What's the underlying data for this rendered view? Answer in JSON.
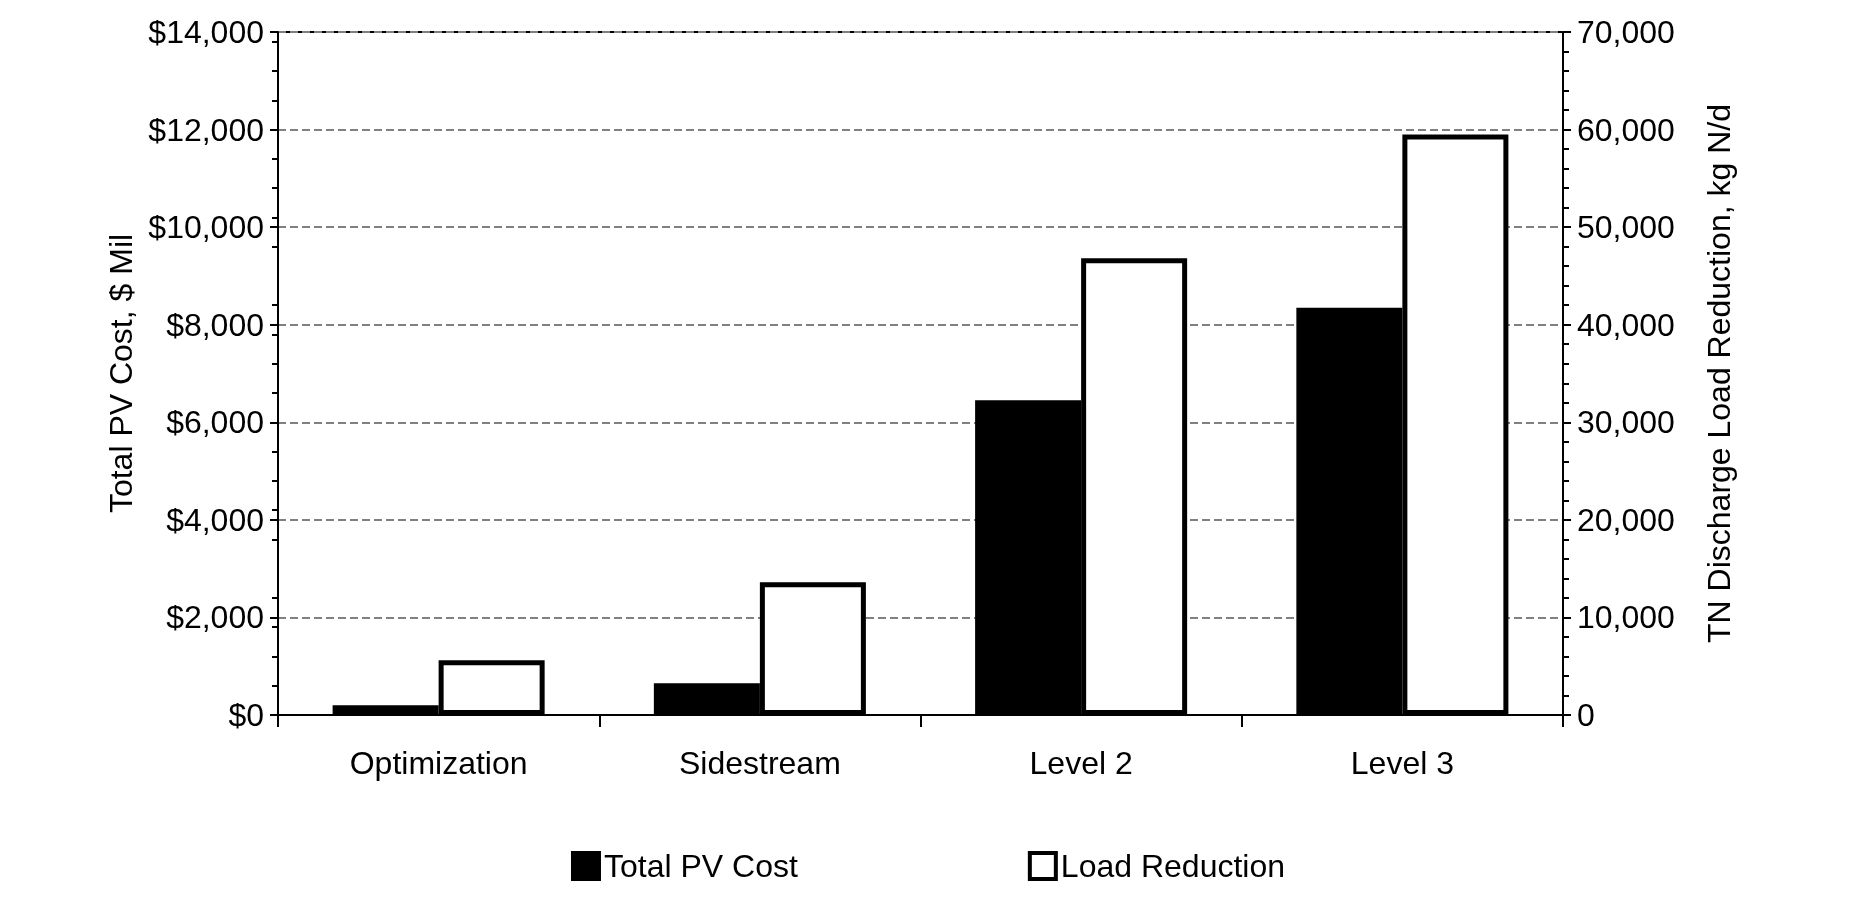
{
  "chart_data": {
    "type": "bar",
    "categories": [
      "Optimization",
      "Sidestream",
      "Level 2",
      "Level 3"
    ],
    "series": [
      {
        "name": "Total PV Cost",
        "color": "#000000",
        "values": [
          200,
          650,
          6450,
          8350
        ]
      },
      {
        "name": "Load Reduction",
        "color": "#ffffff",
        "axis": "y2",
        "values": [
          5600,
          13600,
          46800,
          59500
        ]
      }
    ],
    "ylabel": "Total PV Cost, $ Mil",
    "y2label": "TN Discharge Load Reduction, kg N/d",
    "ylim": [
      0,
      14000
    ],
    "yticks": [
      {
        "value": 0,
        "label": "$0"
      },
      {
        "value": 2000,
        "label": "$2,000"
      },
      {
        "value": 4000,
        "label": "$4,000"
      },
      {
        "value": 6000,
        "label": "$6,000"
      },
      {
        "value": 8000,
        "label": "$8,000"
      },
      {
        "value": 10000,
        "label": "$10,000"
      },
      {
        "value": 12000,
        "label": "$12,000"
      },
      {
        "value": 14000,
        "label": "$14,000"
      }
    ],
    "y2lim": [
      0,
      70000
    ],
    "y2ticks": [
      0,
      {
        "value": 10000,
        "label": "10,000"
      },
      {
        "value": 20000,
        "label": "20,000"
      },
      {
        "value": 30000,
        "label": "30,000"
      },
      {
        "value": 40000,
        "label": "40,000"
      },
      {
        "value": 50000,
        "label": "50,000"
      },
      {
        "value": 60000,
        "label": "60,000"
      },
      {
        "value": 70000,
        "label": "70,000"
      }
    ],
    "grid": "y",
    "legend": "bottom"
  }
}
